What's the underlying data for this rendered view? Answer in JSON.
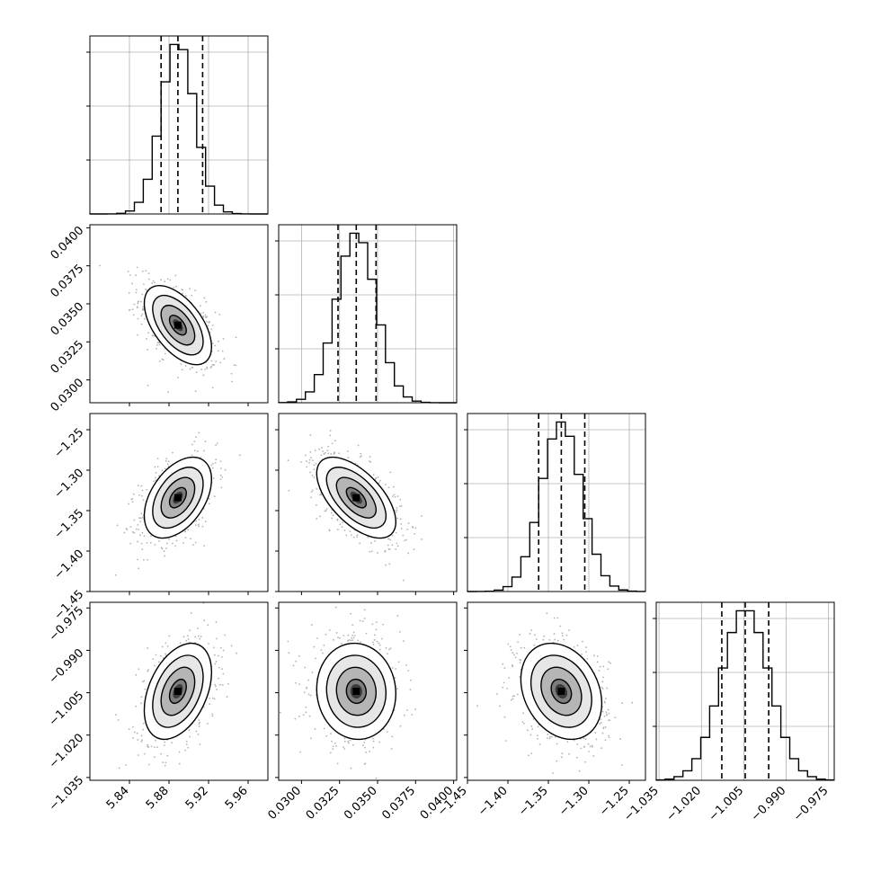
{
  "chart_data": {
    "type": "corner",
    "title": "",
    "parameters": [
      {
        "xlim": [
          5.8,
          5.98
        ],
        "ylim": [
          null,
          null
        ],
        "ticks": [
          "5.84",
          "5.88",
          "5.92",
          "5.96"
        ],
        "mean": 5.889,
        "sigma": 0.017,
        "quantiles": [
          5.872,
          5.889,
          5.914
        ]
      },
      {
        "xlim": [
          0.0285,
          0.0402
        ],
        "ylim": [
          0.0285,
          0.0402
        ],
        "ticks": [
          "0.0300",
          "0.0325",
          "0.0350",
          "0.0375",
          "0.0400"
        ],
        "mean": 0.0336,
        "sigma": 0.0013,
        "quantiles": [
          0.0324,
          0.0336,
          0.0349
        ]
      },
      {
        "xlim": [
          -1.45,
          -1.23
        ],
        "ylim": [
          -1.45,
          -1.23
        ],
        "ticks": [
          "-1.45",
          "-1.40",
          "-1.35",
          "-1.30",
          "-1.25"
        ],
        "mean": -1.334,
        "sigma": 0.025,
        "quantiles": [
          -1.362,
          -1.334,
          -1.305
        ]
      },
      {
        "xlim": [
          -1.036,
          -0.973
        ],
        "ylim": [
          -1.036,
          -0.973
        ],
        "ticks": [
          "-1.035",
          "-1.020",
          "-1.005",
          "-0.990",
          "-0.975"
        ],
        "mean": -1.0045,
        "sigma": 0.0085,
        "quantiles": [
          -1.0128,
          -1.0045,
          -0.9962
        ]
      }
    ],
    "correlations": [
      {
        "row": 1,
        "col": 0,
        "rho": -0.55
      },
      {
        "row": 2,
        "col": 0,
        "rho": 0.45
      },
      {
        "row": 2,
        "col": 1,
        "rho": -0.6
      },
      {
        "row": 3,
        "col": 0,
        "rho": 0.4
      },
      {
        "row": 3,
        "col": 1,
        "rho": -0.05
      },
      {
        "row": 3,
        "col": 2,
        "rho": -0.25
      }
    ],
    "histogram_bins": 20,
    "quantile_levels": [
      0.16,
      0.5,
      0.84
    ],
    "contour_levels_sigma": [
      0.5,
      1.0,
      1.5,
      2.0
    ],
    "grid": true,
    "colors": {
      "ink": "#000000",
      "grid": "#b0b0b0",
      "scatter": "#b3b3b3"
    }
  }
}
